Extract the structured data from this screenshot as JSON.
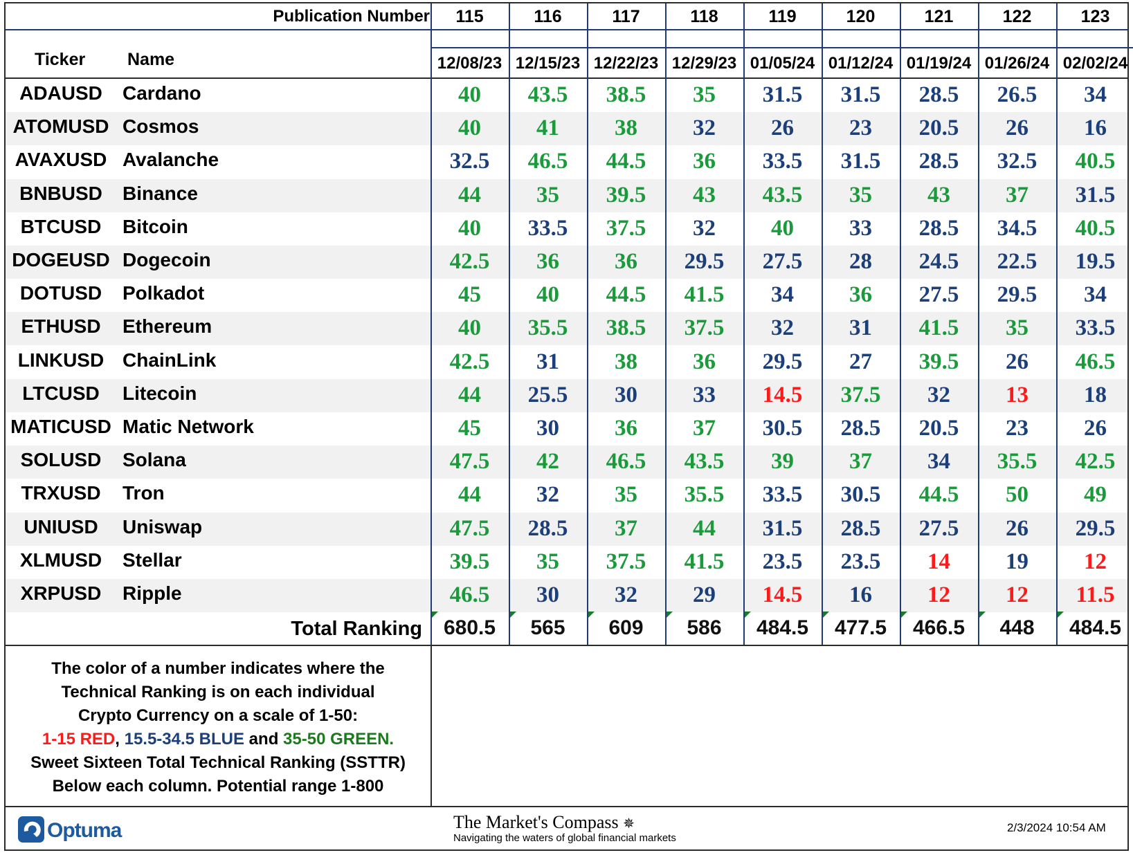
{
  "colors": {
    "red": "#ff1a1a",
    "blue": "#1c3f7a",
    "green": "#1b9a3c"
  },
  "header": {
    "publication_label": "Publication Number",
    "ticker_label": "Ticker",
    "name_label": "Name",
    "total_label": "Total Ranking"
  },
  "chart_data": {
    "type": "table",
    "columns": [
      {
        "publication": "115",
        "date": "12/08/23",
        "total": "680.5"
      },
      {
        "publication": "116",
        "date": "12/15/23",
        "total": "565"
      },
      {
        "publication": "117",
        "date": "12/22/23",
        "total": "609"
      },
      {
        "publication": "118",
        "date": "12/29/23",
        "total": "586"
      },
      {
        "publication": "119",
        "date": "01/05/24",
        "total": "484.5"
      },
      {
        "publication": "120",
        "date": "01/12/24",
        "total": "477.5"
      },
      {
        "publication": "121",
        "date": "01/19/24",
        "total": "466.5"
      },
      {
        "publication": "122",
        "date": "01/26/24",
        "total": "448"
      },
      {
        "publication": "123",
        "date": "02/02/24",
        "total": "484.5"
      }
    ],
    "rows": [
      {
        "ticker": "ADAUSD",
        "name": "Cardano",
        "values": [
          40,
          43.5,
          38.5,
          35,
          31.5,
          31.5,
          28.5,
          26.5,
          34
        ]
      },
      {
        "ticker": "ATOMUSD",
        "name": "Cosmos",
        "values": [
          40,
          41,
          38,
          32,
          26,
          23,
          20.5,
          26,
          16
        ]
      },
      {
        "ticker": "AVAXUSD",
        "name": "Avalanche",
        "values": [
          32.5,
          46.5,
          44.5,
          36,
          33.5,
          31.5,
          28.5,
          32.5,
          40.5
        ]
      },
      {
        "ticker": "BNBUSD",
        "name": "Binance",
        "values": [
          44,
          35,
          39.5,
          43,
          43.5,
          35,
          43,
          37,
          31.5
        ]
      },
      {
        "ticker": "BTCUSD",
        "name": "Bitcoin",
        "values": [
          40,
          33.5,
          37.5,
          32,
          40,
          33,
          28.5,
          34.5,
          40.5
        ]
      },
      {
        "ticker": "DOGEUSD",
        "name": "Dogecoin",
        "values": [
          42.5,
          36,
          36,
          29.5,
          27.5,
          28,
          24.5,
          22.5,
          19.5
        ]
      },
      {
        "ticker": "DOTUSD",
        "name": "Polkadot",
        "values": [
          45,
          40,
          44.5,
          41.5,
          34,
          36,
          27.5,
          29.5,
          34
        ]
      },
      {
        "ticker": "ETHUSD",
        "name": "Ethereum",
        "values": [
          40,
          35.5,
          38.5,
          37.5,
          32,
          31,
          41.5,
          35,
          33.5
        ]
      },
      {
        "ticker": "LINKUSD",
        "name": "ChainLink",
        "values": [
          42.5,
          31,
          38,
          36,
          29.5,
          27,
          39.5,
          26,
          46.5
        ]
      },
      {
        "ticker": "LTCUSD",
        "name": "Litecoin",
        "values": [
          44,
          25.5,
          30,
          33,
          14.5,
          37.5,
          32,
          13,
          18
        ]
      },
      {
        "ticker": "MATICUSD",
        "name": "Matic Network",
        "values": [
          45,
          30,
          36,
          37,
          30.5,
          28.5,
          20.5,
          23,
          26
        ]
      },
      {
        "ticker": "SOLUSD",
        "name": "Solana",
        "values": [
          47.5,
          42,
          46.5,
          43.5,
          39,
          37,
          34,
          35.5,
          42.5
        ]
      },
      {
        "ticker": "TRXUSD",
        "name": "Tron",
        "values": [
          44,
          32,
          35,
          35.5,
          33.5,
          30.5,
          44.5,
          50,
          49
        ]
      },
      {
        "ticker": "UNIUSD",
        "name": "Uniswap",
        "values": [
          47.5,
          28.5,
          37,
          44,
          31.5,
          28.5,
          27.5,
          26,
          29.5
        ]
      },
      {
        "ticker": "XLMUSD",
        "name": "Stellar",
        "values": [
          39.5,
          35,
          37.5,
          41.5,
          23.5,
          23.5,
          14,
          19,
          12
        ]
      },
      {
        "ticker": "XRPUSD",
        "name": "Ripple",
        "values": [
          46.5,
          30,
          32,
          29,
          14.5,
          16,
          12,
          12,
          11.5
        ]
      }
    ]
  },
  "legend": {
    "line1": "The color of a number indicates where the",
    "line2": "Technical Ranking is on each individual",
    "line3": "Crypto Currency on a scale of 1-50:",
    "red_range": "1-15 RED",
    "sep1": ", ",
    "blue_range": "15.5-34.5 BLUE",
    "sep2": " and ",
    "green_range": "35-50 GREEN.",
    "line5": "Sweet Sixteen Total Technical Ranking (SSTTR)",
    "line6": "Below each column.   Potential range 1-800"
  },
  "footer": {
    "logo_text": "Optuma",
    "title": "The Market's Compass",
    "subtitle": "Navigating the waters of global financial markets",
    "timestamp": "2/3/2024 10:54 AM"
  }
}
